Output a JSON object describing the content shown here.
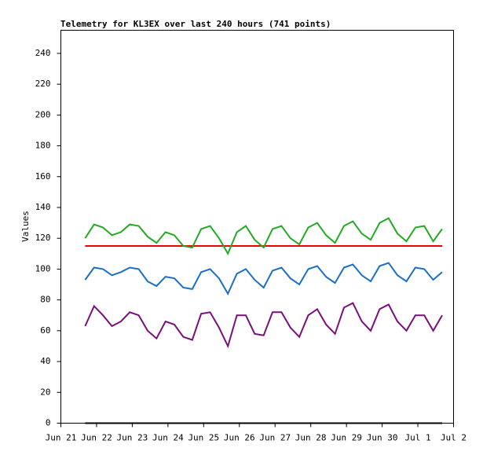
{
  "chart_data": {
    "type": "line",
    "title": "Telemetry for KL3EX over last 240 hours (741 points)",
    "y_label": "Values",
    "xlim": [
      0,
      11
    ],
    "xticks": [
      {
        "value": 0,
        "label": "Jun 21"
      },
      {
        "value": 1,
        "label": "Jun 22"
      },
      {
        "value": 2,
        "label": "Jun 23"
      },
      {
        "value": 3,
        "label": "Jun 24"
      },
      {
        "value": 4,
        "label": "Jun 25"
      },
      {
        "value": 5,
        "label": "Jun 26"
      },
      {
        "value": 6,
        "label": "Jun 27"
      },
      {
        "value": 7,
        "label": "Jun 28"
      },
      {
        "value": 8,
        "label": "Jun 29"
      },
      {
        "value": 9,
        "label": "Jun 30"
      },
      {
        "value": 10,
        "label": "Jul 1"
      },
      {
        "value": 11,
        "label": "Jul 2"
      }
    ],
    "ylim": [
      0,
      255
    ],
    "yticks": [
      0,
      20,
      40,
      60,
      80,
      100,
      120,
      140,
      160,
      180,
      200,
      220,
      240
    ],
    "x": [
      0.68,
      0.93,
      1.18,
      1.43,
      1.68,
      1.93,
      2.18,
      2.43,
      2.68,
      2.93,
      3.18,
      3.43,
      3.68,
      3.93,
      4.18,
      4.43,
      4.68,
      4.93,
      5.18,
      5.43,
      5.68,
      5.93,
      6.18,
      6.43,
      6.68,
      6.93,
      7.18,
      7.43,
      7.68,
      7.93,
      8.18,
      8.43,
      8.68,
      8.93,
      9.18,
      9.43,
      9.68,
      9.93,
      10.18,
      10.43,
      10.68
    ],
    "series": [
      {
        "color": "#000000",
        "values": [
          0,
          0,
          0,
          0,
          0,
          0,
          0,
          0,
          0,
          0,
          0,
          0,
          0,
          0,
          0,
          0,
          0,
          0,
          0,
          0,
          0,
          0,
          0,
          0,
          0,
          0,
          0,
          0,
          0,
          0,
          0,
          0,
          0,
          0,
          0,
          0,
          0,
          0,
          0,
          0,
          0
        ]
      },
      {
        "color": "#7a0f7a",
        "values": [
          63,
          76,
          70,
          63,
          66,
          72,
          70,
          60,
          55,
          66,
          64,
          56,
          54,
          71,
          72,
          62,
          50,
          70,
          70,
          58,
          57,
          72,
          72,
          62,
          56,
          70,
          74,
          64,
          58,
          75,
          78,
          66,
          60,
          74,
          77,
          66,
          60,
          70,
          70,
          60,
          70
        ]
      },
      {
        "color": "#1a6fc4",
        "values": [
          93,
          101,
          100,
          96,
          98,
          101,
          100,
          92,
          89,
          95,
          94,
          88,
          87,
          98,
          100,
          94,
          84,
          97,
          100,
          93,
          88,
          99,
          101,
          94,
          90,
          100,
          102,
          95,
          91,
          101,
          103,
          96,
          92,
          102,
          104,
          96,
          92,
          101,
          100,
          93,
          98
        ]
      },
      {
        "color": "#ee0000",
        "values": [
          115,
          115,
          115,
          115,
          115,
          115,
          115,
          115,
          115,
          115,
          115,
          115,
          115,
          115,
          115,
          115,
          115,
          115,
          115,
          115,
          115,
          115,
          115,
          115,
          115,
          115,
          115,
          115,
          115,
          115,
          115,
          115,
          115,
          115,
          115,
          115,
          115,
          115,
          115,
          115,
          115
        ]
      },
      {
        "color": "#22aa22",
        "values": [
          120,
          129,
          127,
          122,
          124,
          129,
          128,
          121,
          117,
          124,
          122,
          115,
          114,
          126,
          128,
          120,
          110,
          124,
          128,
          119,
          114,
          126,
          128,
          120,
          116,
          127,
          130,
          122,
          117,
          128,
          131,
          123,
          119,
          130,
          133,
          123,
          118,
          127,
          128,
          118,
          126
        ]
      }
    ]
  }
}
